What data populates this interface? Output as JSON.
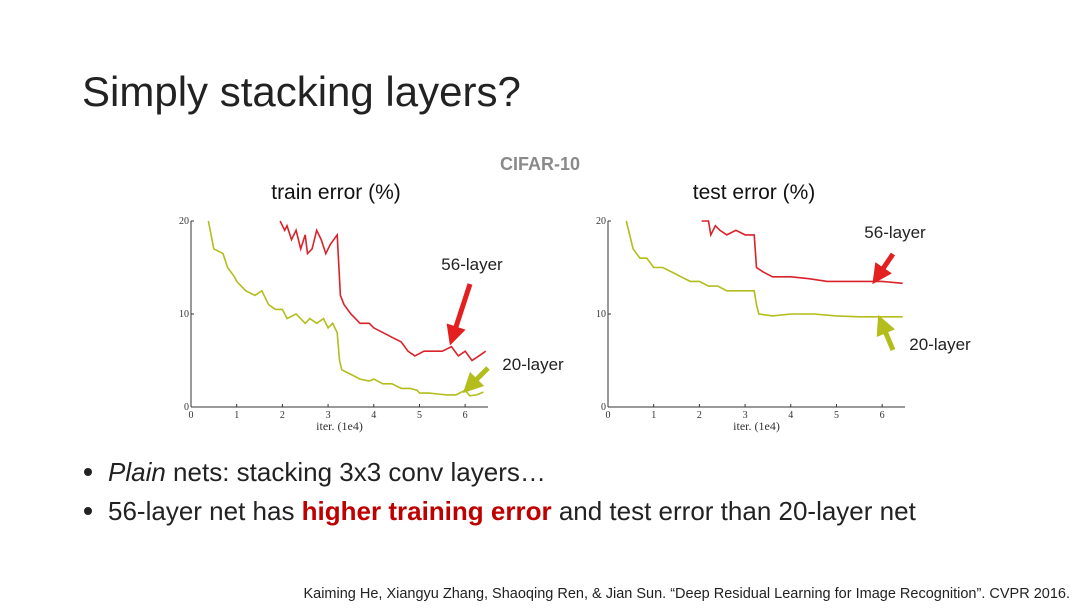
{
  "slide": {
    "title": "Simply stacking layers?",
    "subtitle": "CIFAR-10",
    "bullets": [
      [
        "Plain",
        " nets: stacking 3x3 conv layers…"
      ],
      [
        "56-layer net has ",
        "higher training error",
        " and test error than 20-layer net"
      ]
    ],
    "citation": "Kaiming He, Xiangyu Zhang, Shaoqing Ren, & Jian Sun. “Deep Residual Learning for Image Recognition”. CVPR 2016."
  },
  "chart_data": [
    {
      "type": "line",
      "title": "train error (%)",
      "x_label": "iter. (1e4)",
      "xlim": [
        0,
        6.5
      ],
      "ylim": [
        0,
        20
      ],
      "xticks": [
        0,
        1,
        2,
        3,
        4,
        5,
        6
      ],
      "yticks": [
        0,
        10,
        20
      ],
      "series": [
        {
          "name": "56-layer",
          "color": "#d9232a",
          "x": [
            1.95,
            2.05,
            2.1,
            2.2,
            2.3,
            2.4,
            2.5,
            2.55,
            2.65,
            2.75,
            2.85,
            2.95,
            3.05,
            3.2,
            3.27,
            3.35,
            3.5,
            3.7,
            3.9,
            4.0,
            4.2,
            4.4,
            4.6,
            4.75,
            4.9,
            5.1,
            5.3,
            5.5,
            5.7,
            5.85,
            6.0,
            6.15,
            6.3,
            6.45
          ],
          "values": [
            20,
            19,
            19.5,
            18,
            19,
            17,
            18.5,
            16.5,
            17,
            19,
            18,
            16.5,
            17.5,
            18.5,
            12,
            11,
            10,
            9,
            9,
            8.5,
            8,
            7.5,
            7,
            6,
            5.5,
            6,
            6,
            6,
            6.5,
            5.5,
            6,
            5,
            5.5,
            6
          ]
        },
        {
          "name": "20-layer",
          "color": "#b3bd1c",
          "x": [
            0.38,
            0.5,
            0.7,
            0.8,
            0.95,
            1.0,
            1.2,
            1.4,
            1.55,
            1.7,
            1.85,
            2.0,
            2.1,
            2.3,
            2.5,
            2.6,
            2.75,
            2.9,
            3.0,
            3.1,
            3.2,
            3.25,
            3.3,
            3.5,
            3.7,
            3.9,
            4.0,
            4.2,
            4.4,
            4.6,
            4.8,
            4.95,
            5.0,
            5.2,
            5.4,
            5.6,
            5.8,
            6.0,
            6.1,
            6.25,
            6.4
          ],
          "values": [
            20,
            17,
            16.5,
            15,
            14,
            13.5,
            12.5,
            12,
            12.5,
            11,
            10.5,
            10.5,
            9.5,
            10,
            9,
            9.5,
            9,
            9.5,
            8.5,
            9,
            8,
            5,
            4,
            3.5,
            3,
            2.8,
            3,
            2.5,
            2.5,
            2,
            2,
            1.8,
            1.5,
            1.5,
            1.4,
            1.3,
            1.3,
            1.8,
            1.2,
            1.3,
            1.6
          ]
        }
      ]
    },
    {
      "type": "line",
      "title": "test error (%)",
      "x_label": "iter. (1e4)",
      "xlim": [
        0,
        6.5
      ],
      "ylim": [
        0,
        20
      ],
      "xticks": [
        0,
        1,
        2,
        3,
        4,
        5,
        6
      ],
      "yticks": [
        0,
        10,
        20
      ],
      "series": [
        {
          "name": "56-layer",
          "color": "#d9232a",
          "x": [
            2.05,
            2.2,
            2.25,
            2.35,
            2.45,
            2.6,
            2.8,
            3.0,
            3.2,
            3.25,
            3.4,
            3.6,
            4.0,
            4.4,
            4.8,
            5.2,
            5.6,
            6.0,
            6.45
          ],
          "values": [
            20,
            20,
            18.5,
            19.5,
            19,
            18.5,
            19,
            18.5,
            18.5,
            15,
            14.5,
            14,
            14,
            13.8,
            13.5,
            13.5,
            13.5,
            13.5,
            13.3
          ]
        },
        {
          "name": "20-layer",
          "color": "#b3bd1c",
          "x": [
            0.4,
            0.55,
            0.7,
            0.85,
            1.0,
            1.2,
            1.4,
            1.6,
            1.8,
            2.0,
            2.2,
            2.4,
            2.6,
            2.8,
            3.0,
            3.2,
            3.25,
            3.3,
            3.6,
            4.0,
            4.5,
            5.0,
            5.5,
            6.0,
            6.45
          ],
          "values": [
            20,
            17,
            16,
            16,
            15,
            15,
            14.5,
            14,
            13.5,
            13.5,
            13,
            13,
            12.5,
            12.5,
            12.5,
            12.5,
            11,
            10,
            9.8,
            10,
            10,
            9.8,
            9.7,
            9.7,
            9.7
          ]
        }
      ]
    }
  ]
}
